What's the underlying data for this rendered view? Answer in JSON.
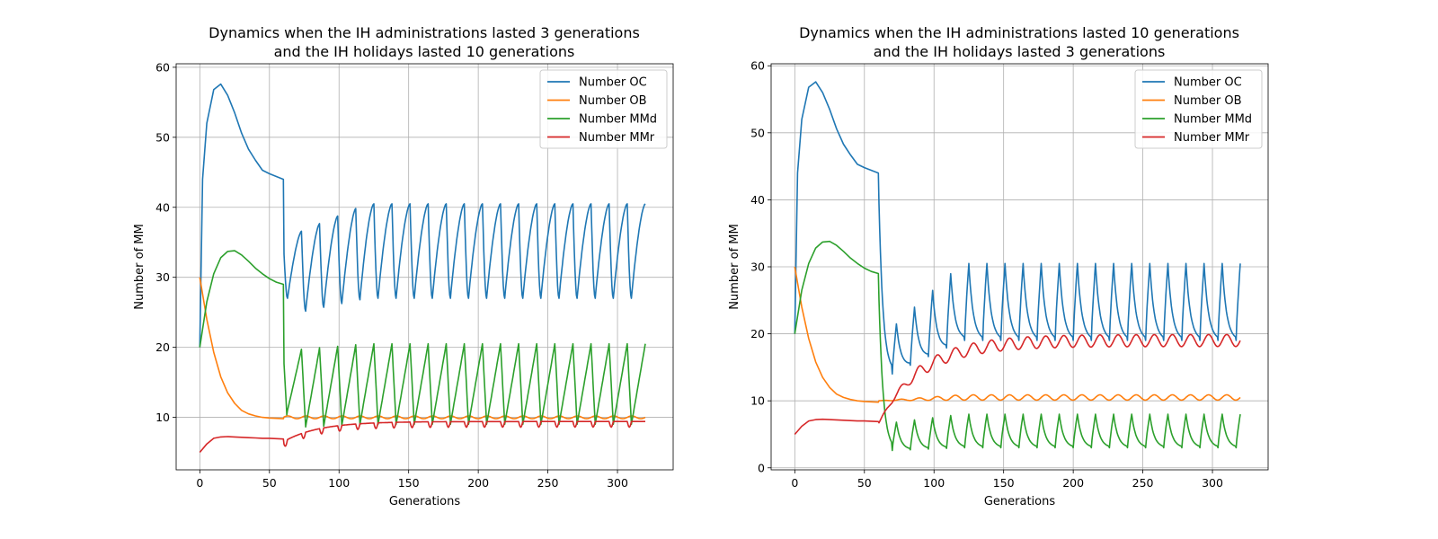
{
  "figure": {
    "background": "#ffffff"
  },
  "chart_data": [
    {
      "type": "line",
      "title": "Dynamics when the IH administrations lasted 3 generations\nand the IH holidays lasted 10 generations",
      "xlabel": "Generations",
      "ylabel": "Number of MM",
      "xlim": [
        -17,
        340
      ],
      "ylim": [
        2.5,
        60.5
      ],
      "xticks": [
        0,
        50,
        100,
        150,
        200,
        250,
        300
      ],
      "yticks": [
        10,
        20,
        30,
        40,
        50,
        60
      ],
      "grid": true,
      "legend_position": "top-right",
      "dynamics": {
        "admin": 3,
        "holiday": 10,
        "start": 60,
        "end": 320
      },
      "series": [
        {
          "name": "Number OC",
          "color": "#1f77b4",
          "x": [
            0,
            2,
            5,
            10,
            15,
            20,
            25,
            30,
            35,
            40,
            45,
            50,
            55,
            60
          ],
          "values": [
            20,
            44,
            52,
            56.8,
            57.6,
            56,
            53.5,
            50.6,
            48.3,
            46.7,
            45.3,
            44.8,
            44.4,
            44
          ]
        },
        {
          "name": "Number OB",
          "color": "#ff7f0e",
          "x": [
            0,
            5,
            10,
            15,
            20,
            25,
            30,
            35,
            40,
            45,
            50,
            55,
            60
          ],
          "values": [
            30,
            24,
            19.3,
            15.8,
            13.5,
            12,
            11,
            10.5,
            10.2,
            10,
            9.9,
            9.85,
            9.8
          ]
        },
        {
          "name": "Number MMd",
          "color": "#2ca02c",
          "x": [
            0,
            5,
            10,
            15,
            20,
            25,
            30,
            35,
            40,
            45,
            50,
            55,
            60
          ],
          "values": [
            20,
            26.5,
            30.5,
            32.8,
            33.7,
            33.8,
            33.2,
            32.3,
            31.3,
            30.5,
            29.8,
            29.3,
            29
          ]
        },
        {
          "name": "Number MMr",
          "color": "#d62728",
          "x": [
            0,
            5,
            10,
            15,
            20,
            25,
            30,
            35,
            40,
            45,
            50,
            55,
            60
          ],
          "values": [
            5,
            6.2,
            7,
            7.2,
            7.25,
            7.2,
            7.15,
            7.1,
            7.05,
            7,
            7,
            6.95,
            6.9
          ]
        }
      ],
      "oscillation": {
        "oc": {
          "start": 27,
          "peak_first": 35.5,
          "peak_last": 40.5,
          "trough_first": 24.5,
          "trough_last": 27
        },
        "ob": {
          "hi": 10.2,
          "lo": 9.8
        },
        "mmd": {
          "start": 11,
          "peak_first": 19.5,
          "peak_last": 20.5,
          "trough_first": 8.5,
          "trough_last": 9
        },
        "mmr": {
          "start": 6.5,
          "settle": 9.4,
          "dip": 0.8
        }
      }
    },
    {
      "type": "line",
      "title": "Dynamics when the IH administrations lasted 10 generations\nand the IH holidays lasted 3 generations",
      "xlabel": "Generations",
      "ylabel": "Number of MM",
      "xlim": [
        -17,
        340
      ],
      "ylim": [
        -0.3,
        60.3
      ],
      "xticks": [
        0,
        50,
        100,
        150,
        200,
        250,
        300
      ],
      "yticks": [
        0,
        10,
        20,
        30,
        40,
        50,
        60
      ],
      "grid": true,
      "legend_position": "top-right",
      "dynamics": {
        "admin": 10,
        "holiday": 3,
        "start": 60,
        "end": 320
      },
      "series": [
        {
          "name": "Number OC",
          "color": "#1f77b4",
          "x": [
            0,
            2,
            5,
            10,
            15,
            20,
            25,
            30,
            35,
            40,
            45,
            50,
            55,
            60
          ],
          "values": [
            20,
            44,
            52,
            56.8,
            57.6,
            56,
            53.5,
            50.6,
            48.3,
            46.7,
            45.3,
            44.8,
            44.4,
            44
          ]
        },
        {
          "name": "Number OB",
          "color": "#ff7f0e",
          "x": [
            0,
            5,
            10,
            15,
            20,
            25,
            30,
            35,
            40,
            45,
            50,
            55,
            60
          ],
          "values": [
            30,
            24,
            19.3,
            15.8,
            13.5,
            12,
            11,
            10.5,
            10.2,
            10,
            9.9,
            9.85,
            9.8
          ]
        },
        {
          "name": "Number MMd",
          "color": "#2ca02c",
          "x": [
            0,
            5,
            10,
            15,
            20,
            25,
            30,
            35,
            40,
            45,
            50,
            55,
            60
          ],
          "values": [
            20,
            26.5,
            30.5,
            32.8,
            33.7,
            33.8,
            33.2,
            32.3,
            31.3,
            30.5,
            29.8,
            29.3,
            29
          ]
        },
        {
          "name": "Number MMr",
          "color": "#d62728",
          "x": [
            0,
            5,
            10,
            15,
            20,
            25,
            30,
            35,
            40,
            45,
            50,
            55,
            60
          ],
          "values": [
            5,
            6.2,
            7,
            7.2,
            7.25,
            7.2,
            7.15,
            7.1,
            7.05,
            7,
            7,
            6.95,
            6.9
          ]
        }
      ],
      "oscillation": {
        "oc": {
          "trough_first": 13,
          "trough_last": 19,
          "peak_first": 19,
          "peak_last": 30.5
        },
        "ob": {
          "start": 10,
          "settle": 10.5,
          "amp": 0.4
        },
        "mmd": {
          "trough_first": 2.5,
          "trough_last": 3,
          "peak_first": 6.5,
          "peak_last": 8
        },
        "mmr": {
          "start": 6.5,
          "settle": 19,
          "amp": 0.9
        }
      }
    }
  ]
}
